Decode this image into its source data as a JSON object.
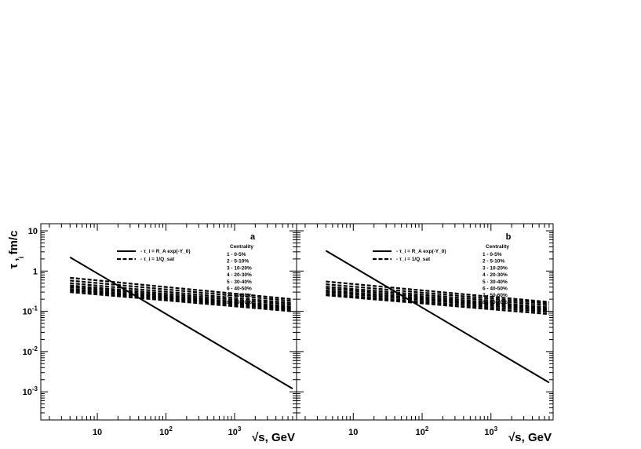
{
  "y_axis_label": "τ , fm/c",
  "y_axis_label_sub": "i",
  "x_axis_label": "√s, GeV",
  "chart_data": [
    {
      "type": "line",
      "panel_label": "a",
      "xscale": "log",
      "yscale": "log",
      "xlim": [
        1.5,
        8000
      ],
      "ylim": [
        0.0002,
        15
      ],
      "x_ticks": [
        "10",
        "10^2",
        "10^3"
      ],
      "y_ticks": [
        "10^-3",
        "10^-2",
        "10^-1",
        "1",
        "10"
      ],
      "legend": {
        "solid_label": "- τ_i = R_A exp(-Y_0)",
        "dashed_label": "- τ_i = 1/Q_sat",
        "centrality_title": "Centrality",
        "centrality_items": [
          "1 - 0-5%",
          "2 - 5-10%",
          "3 - 10-20%",
          "4 - 20-30%",
          "5 - 30-40%",
          "6 - 40-50%",
          "7 - 50-60%",
          "8 - 60-70%"
        ]
      },
      "solid_series": {
        "x": [
          4,
          7000
        ],
        "y": [
          2.2,
          0.0012
        ]
      },
      "dashed_series": [
        {
          "x": [
            4,
            7000
          ],
          "y": [
            0.68,
            0.2
          ]
        },
        {
          "x": [
            4,
            7000
          ],
          "y": [
            0.58,
            0.18
          ]
        },
        {
          "x": [
            4,
            7000
          ],
          "y": [
            0.5,
            0.16
          ]
        },
        {
          "x": [
            4,
            7000
          ],
          "y": [
            0.44,
            0.145
          ]
        },
        {
          "x": [
            4,
            7000
          ],
          "y": [
            0.4,
            0.13
          ]
        },
        {
          "x": [
            4,
            7000
          ],
          "y": [
            0.36,
            0.12
          ]
        },
        {
          "x": [
            4,
            7000
          ],
          "y": [
            0.33,
            0.11
          ]
        },
        {
          "x": [
            4,
            7000
          ],
          "y": [
            0.3,
            0.1
          ]
        }
      ]
    },
    {
      "type": "line",
      "panel_label": "b",
      "xscale": "log",
      "yscale": "log",
      "xlim": [
        1.5,
        8000
      ],
      "ylim": [
        0.0002,
        15
      ],
      "x_ticks": [
        "10",
        "10^2",
        "10^3"
      ],
      "y_ticks": [],
      "legend": {
        "solid_label": "- τ_i = R_A exp(-Y_0)",
        "dashed_label": "- τ_i = 1/Q_sat",
        "centrality_title": "Centrality",
        "centrality_items": [
          "1 - 0-5%",
          "2 - 5-10%",
          "3 - 10-20%",
          "4 - 20-30%",
          "5 - 30-40%",
          "6 - 40-50%",
          "7 - 50-60%",
          "8 - 60-70%"
        ]
      },
      "solid_series": {
        "x": [
          4,
          7000
        ],
        "y": [
          3.2,
          0.0017
        ]
      },
      "dashed_series": [
        {
          "x": [
            4,
            7000
          ],
          "y": [
            0.55,
            0.17
          ]
        },
        {
          "x": [
            4,
            7000
          ],
          "y": [
            0.47,
            0.155
          ]
        },
        {
          "x": [
            4,
            7000
          ],
          "y": [
            0.41,
            0.14
          ]
        },
        {
          "x": [
            4,
            7000
          ],
          "y": [
            0.37,
            0.125
          ]
        },
        {
          "x": [
            4,
            7000
          ],
          "y": [
            0.33,
            0.115
          ]
        },
        {
          "x": [
            4,
            7000
          ],
          "y": [
            0.3,
            0.105
          ]
        },
        {
          "x": [
            4,
            7000
          ],
          "y": [
            0.27,
            0.095
          ]
        },
        {
          "x": [
            4,
            7000
          ],
          "y": [
            0.25,
            0.085
          ]
        }
      ]
    }
  ]
}
